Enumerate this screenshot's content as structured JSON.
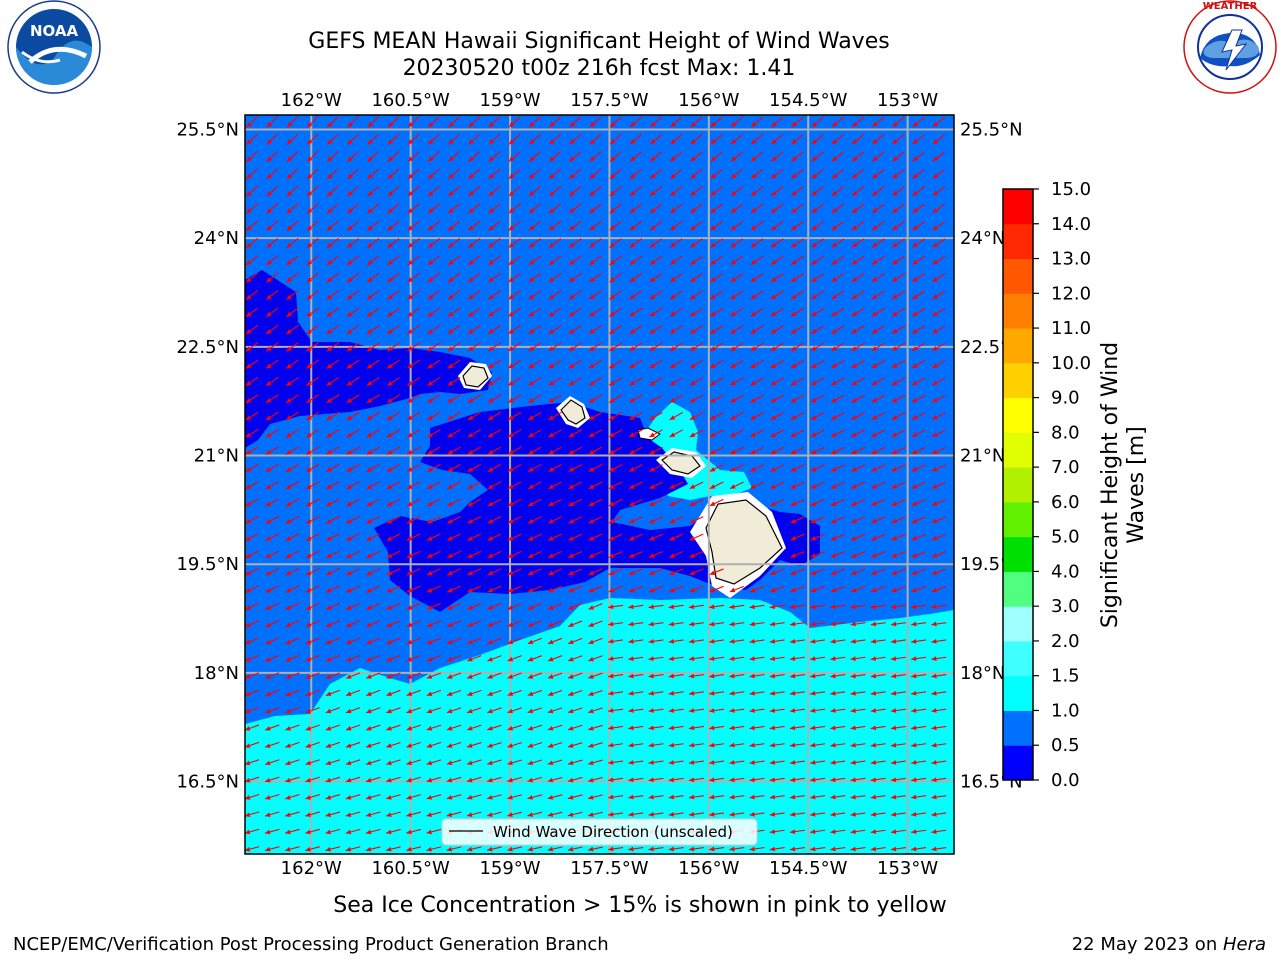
{
  "title": {
    "line1": "GEFS MEAN Hawaii Significant Height of Wind Waves",
    "line2": "20230520 t00z 216h fcst   Max: 1.41"
  },
  "logos": {
    "left_text": "NOAA",
    "left_ring_text": "NATIONAL OCEANIC AND ATMOSPHERIC ADMINISTRATION · U.S. DEPARTMENT OF COMMERCE",
    "right_ring_text": "NATIONAL WEATHER SERVICE"
  },
  "map": {
    "lon_ticks": [
      "162°W",
      "160.5°W",
      "159°W",
      "157.5°W",
      "156°W",
      "154.5°W",
      "153°W"
    ],
    "lon_values": [
      -162,
      -160.5,
      -159,
      -157.5,
      -156,
      -154.5,
      -153
    ],
    "lat_ticks": [
      "25.5°N",
      "24°N",
      "22.5°N",
      "21°N",
      "19.5°N",
      "18°N",
      "16.5°N"
    ],
    "lat_values": [
      25.5,
      24,
      22.5,
      21,
      19.5,
      18,
      16.5
    ],
    "lon_range": [
      -163.0,
      -152.3
    ],
    "lat_range": [
      15.5,
      25.7
    ],
    "legend_label": "Wind Wave Direction (unscaled)"
  },
  "colorbar": {
    "label_line1": "Significant Height of Wind",
    "label_line2": "Waves [m]",
    "levels": [
      "0.0",
      "0.5",
      "1.0",
      "1.5",
      "2.0",
      "3.0",
      "4.0",
      "5.0",
      "6.0",
      "7.0",
      "8.0",
      "9.0",
      "10.0",
      "11.0",
      "12.0",
      "13.0",
      "14.0",
      "15.0"
    ],
    "colors": [
      "#0000ff",
      "#0070ff",
      "#00ffff",
      "#40ffff",
      "#a0ffff",
      "#50ff80",
      "#00e000",
      "#60f000",
      "#b0f000",
      "#e0ff00",
      "#ffff00",
      "#ffd000",
      "#ffa800",
      "#ff8000",
      "#ff5800",
      "#ff2800",
      "#ff0000"
    ]
  },
  "footer": {
    "caption": "Sea Ice Concentration > 15% is shown in pink to yellow",
    "left": "NCEP/EMC/Verification Post Processing Product Generation Branch",
    "right_prefix": "22 May 2023 on ",
    "right_host": "Hera"
  },
  "colors": {
    "deep": "#0000ee",
    "mid": "#0070ff",
    "light": "#00ffff",
    "land": "#f0ecd8",
    "arrow": "#ff0000"
  }
}
